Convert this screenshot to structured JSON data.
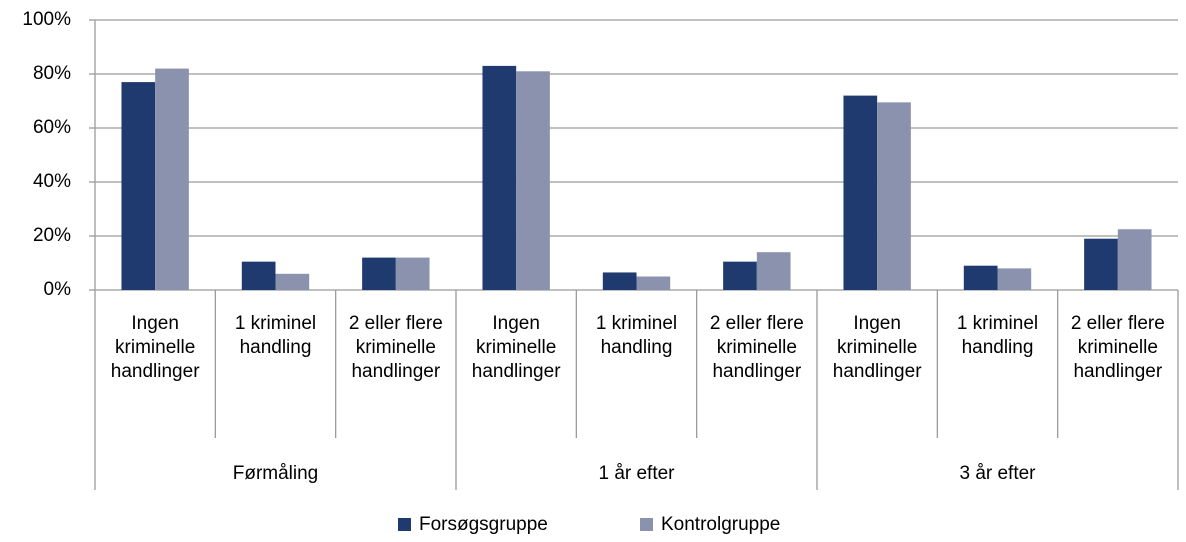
{
  "chart_data": {
    "type": "bar",
    "categories": [
      "Ingen kriminelle handlinger",
      "1 kriminel handling",
      "2 eller flere kriminelle handlinger",
      "Ingen kriminelle handlinger",
      "1 kriminel handling",
      "2 eller flere kriminelle handlinger",
      "Ingen kriminelle handlinger",
      "1 kriminel handling",
      "2 eller flere kriminelle handlinger"
    ],
    "groups": [
      "Førmåling",
      "1 år efter",
      "3 år efter"
    ],
    "series": [
      {
        "name": "Forsøgsgruppe",
        "color": "#1f3a6e",
        "values": [
          77,
          10.5,
          12,
          83,
          6.5,
          10.5,
          72,
          9,
          19
        ]
      },
      {
        "name": "Kontrolgruppe",
        "color": "#8a92ae",
        "values": [
          82,
          6,
          12,
          81,
          5,
          14,
          69.5,
          8,
          22.5
        ]
      }
    ],
    "ylim": [
      0,
      100
    ],
    "yticks": [
      {
        "value": 0,
        "label": "0%"
      },
      {
        "value": 20,
        "label": "20%"
      },
      {
        "value": 40,
        "label": "40%"
      },
      {
        "value": 60,
        "label": "60%"
      },
      {
        "value": 80,
        "label": "80%"
      },
      {
        "value": 100,
        "label": "100%"
      }
    ],
    "grid": true,
    "legend": "bottom"
  }
}
